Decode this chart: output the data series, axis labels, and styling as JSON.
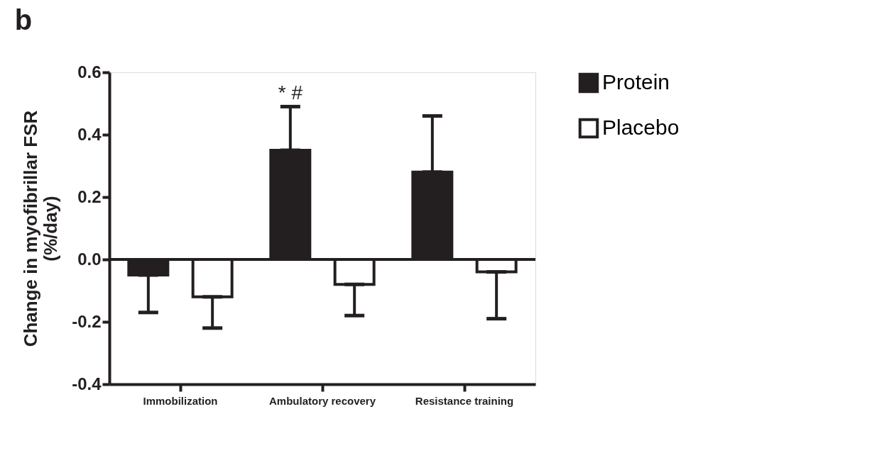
{
  "chart_data": {
    "type": "bar",
    "title": "b",
    "ylabel": "Change in myofibrillar  FSR\n(%/day)",
    "categories": [
      "Immobilization",
      "Ambulatory recovery",
      "Resistance training"
    ],
    "series": [
      {
        "name": "Protein",
        "color": "#231f20",
        "values": [
          -0.05,
          0.35,
          0.28
        ],
        "errors": [
          [
            -0.17,
            -0.05
          ],
          [
            0.35,
            0.49
          ],
          [
            0.28,
            0.46
          ]
        ]
      },
      {
        "name": "Placebo",
        "color": "#ffffff",
        "values": [
          -0.12,
          -0.08,
          -0.04
        ],
        "errors": [
          [
            -0.22,
            -0.12
          ],
          [
            -0.18,
            -0.08
          ],
          [
            -0.19,
            -0.04
          ]
        ]
      }
    ],
    "ylim": [
      -0.4,
      0.6
    ],
    "yticks": [
      {
        "value": -0.4,
        "label": "-0.4"
      },
      {
        "value": -0.2,
        "label": "-0.2"
      },
      {
        "value": 0,
        "label": "0.0"
      },
      {
        "value": 0.2,
        "label": "0.2"
      },
      {
        "value": 0.4,
        "label": "0.4"
      },
      {
        "value": 0.6,
        "label": "0.6"
      }
    ],
    "ref_lines": [
      {
        "axis": "y",
        "value": 0,
        "color": "#231f20"
      }
    ],
    "annotations": [
      "* #"
    ],
    "grid": false,
    "legend": "top right"
  }
}
